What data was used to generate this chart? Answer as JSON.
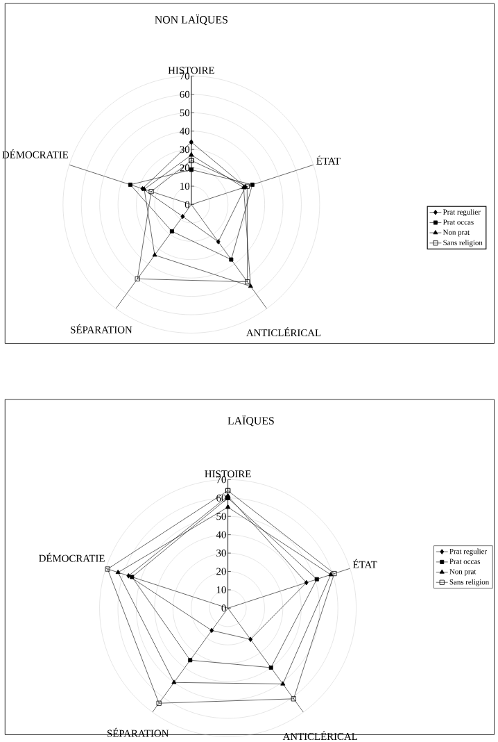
{
  "chart_data": [
    {
      "type": "radar",
      "title": "NON LAÏQUES",
      "categories": [
        "HISTOIRE",
        "ÉTAT",
        "ANTICLÉRICAL",
        "SÉPARATION",
        "DÉMOCRATIE"
      ],
      "ylim": [
        0,
        70
      ],
      "yticks": [
        0,
        10,
        20,
        30,
        40,
        50,
        60,
        70
      ],
      "legend": "right",
      "series": [
        {
          "name": "Prat regulier",
          "color": "#000000",
          "marker": "diamond",
          "values": [
            34,
            31,
            25,
            8,
            28
          ]
        },
        {
          "name": "Prat occas",
          "color": "#000000",
          "marker": "square",
          "values": [
            19,
            35,
            37,
            18,
            35
          ]
        },
        {
          "name": "Non prat",
          "color": "#000000",
          "marker": "triangle",
          "values": [
            27,
            30,
            55,
            34,
            27
          ]
        },
        {
          "name": "Sans religion",
          "color": "#000000",
          "marker": "square-open",
          "values": [
            24,
            32,
            52,
            50,
            23
          ]
        }
      ]
    },
    {
      "type": "radar",
      "title": "LAÏQUES",
      "categories": [
        "HISTOIRE",
        "ÉTAT",
        "ANTICLÉRICAL",
        "SÉPARATION",
        "DÉMOCRATIE"
      ],
      "ylim": [
        0,
        70
      ],
      "yticks": [
        0,
        10,
        20,
        30,
        40,
        50,
        60,
        70
      ],
      "legend": "right",
      "series": [
        {
          "name": "Prat regulier",
          "color": "#000000",
          "marker": "diamond",
          "values": [
            61,
            45,
            21,
            15,
            57
          ]
        },
        {
          "name": "Prat occas",
          "color": "#000000",
          "marker": "square",
          "values": [
            60,
            51,
            40,
            35,
            55
          ]
        },
        {
          "name": "Non prat",
          "color": "#000000",
          "marker": "triangle",
          "values": [
            55,
            59,
            51,
            50,
            63
          ]
        },
        {
          "name": "Sans religion",
          "color": "#000000",
          "marker": "square-open",
          "values": [
            64,
            61,
            61,
            64,
            69
          ]
        }
      ]
    }
  ]
}
